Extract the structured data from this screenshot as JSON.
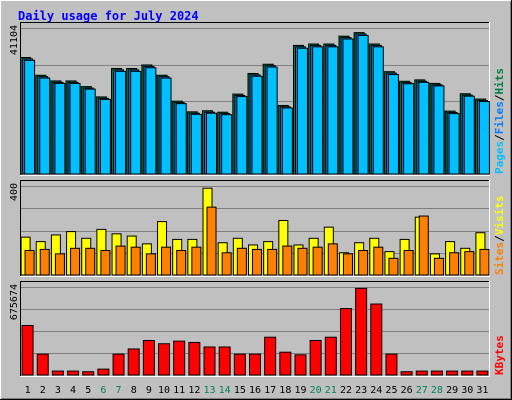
{
  "chart_data": [
    {
      "type": "bar",
      "title": "Daily usage for July 2024",
      "categories": [
        "1",
        "2",
        "3",
        "4",
        "5",
        "6",
        "7",
        "8",
        "9",
        "10",
        "11",
        "12",
        "13",
        "14",
        "15",
        "16",
        "17",
        "18",
        "19",
        "20",
        "21",
        "22",
        "23",
        "24",
        "25",
        "26",
        "27",
        "28",
        "29",
        "30",
        "31"
      ],
      "weekend_days": [
        "6",
        "7",
        "13",
        "14",
        "20",
        "21",
        "27",
        "28"
      ],
      "y_max_label": "41104",
      "ylim": [
        0,
        41104
      ],
      "series": [
        {
          "name": "Hits",
          "color": "#008040",
          "values": [
            32800,
            27800,
            26200,
            26200,
            24600,
            21700,
            29700,
            29700,
            30700,
            27800,
            20500,
            17500,
            17800,
            17400,
            22500,
            28300,
            30900,
            19300,
            36200,
            36600,
            36600,
            38800,
            39800,
            36600,
            28800,
            26100,
            26500,
            25500,
            17700,
            22600,
            21100
          ]
        },
        {
          "name": "Files",
          "color": "#0080ff",
          "values": [
            32400,
            27400,
            25800,
            25800,
            24200,
            21300,
            29300,
            29300,
            30300,
            27400,
            20100,
            17100,
            17400,
            17000,
            22100,
            27900,
            30500,
            18900,
            35800,
            36200,
            36200,
            38400,
            39400,
            36200,
            28400,
            25700,
            26100,
            25100,
            17300,
            22200,
            20700
          ]
        },
        {
          "name": "Pages",
          "color": "#00c0ff",
          "values": [
            32000,
            27000,
            25500,
            25500,
            23900,
            21000,
            28900,
            28900,
            29900,
            27000,
            19800,
            16800,
            17100,
            16700,
            21800,
            27500,
            30100,
            18600,
            35400,
            35800,
            35800,
            38000,
            39000,
            35800,
            28000,
            25400,
            25800,
            24800,
            17000,
            21900,
            20400
          ]
        }
      ],
      "label_colors": {
        "Pages": "#00c0ff",
        "Files": "#0080ff",
        "Hits": "#008040"
      }
    },
    {
      "type": "bar",
      "categories": [
        "1",
        "2",
        "3",
        "4",
        "5",
        "6",
        "7",
        "8",
        "9",
        "10",
        "11",
        "12",
        "13",
        "14",
        "15",
        "16",
        "17",
        "18",
        "19",
        "20",
        "21",
        "22",
        "23",
        "24",
        "25",
        "26",
        "27",
        "28",
        "29",
        "30",
        "31"
      ],
      "y_max_label": "400",
      "ylim": [
        0,
        400
      ],
      "series": [
        {
          "name": "Visits",
          "color": "#ffff00",
          "values": [
            170,
            150,
            180,
            195,
            165,
            205,
            185,
            175,
            140,
            240,
            160,
            160,
            390,
            145,
            165,
            135,
            150,
            245,
            135,
            165,
            215,
            100,
            145,
            165,
            105,
            160,
            260,
            95,
            150,
            120,
            190
          ]
        },
        {
          "name": "Sites",
          "color": "#ff8000",
          "values": [
            110,
            115,
            95,
            120,
            120,
            110,
            130,
            125,
            95,
            125,
            110,
            125,
            305,
            100,
            120,
            115,
            115,
            130,
            120,
            125,
            140,
            95,
            110,
            125,
            75,
            110,
            265,
            75,
            100,
            105,
            115
          ]
        }
      ],
      "label_colors": {
        "Sites": "#ff8000",
        "Visits": "#ffff00"
      }
    },
    {
      "type": "bar",
      "categories": [
        "1",
        "2",
        "3",
        "4",
        "5",
        "6",
        "7",
        "8",
        "9",
        "10",
        "11",
        "12",
        "13",
        "14",
        "15",
        "16",
        "17",
        "18",
        "19",
        "20",
        "21",
        "22",
        "23",
        "24",
        "25",
        "26",
        "27",
        "28",
        "29",
        "30",
        "31"
      ],
      "y_max_label": "675674",
      "ylim": [
        0,
        675674
      ],
      "series": [
        {
          "name": "KBytes",
          "color": "#ff0000",
          "values": [
            380000,
            160000,
            30000,
            30000,
            25000,
            45000,
            160000,
            200000,
            265000,
            240000,
            260000,
            250000,
            215000,
            215000,
            160000,
            160000,
            290000,
            175000,
            155000,
            265000,
            290000,
            510000,
            665000,
            545000,
            160000,
            25000,
            30000,
            30000,
            30000,
            30000,
            30000
          ]
        }
      ],
      "label_colors": {
        "KBytes": "#ff0000"
      }
    }
  ],
  "x_label_colors": {
    "weekday": "#000000",
    "weekend": "#00805c"
  },
  "title_color": "#0000ff",
  "separator": "/"
}
